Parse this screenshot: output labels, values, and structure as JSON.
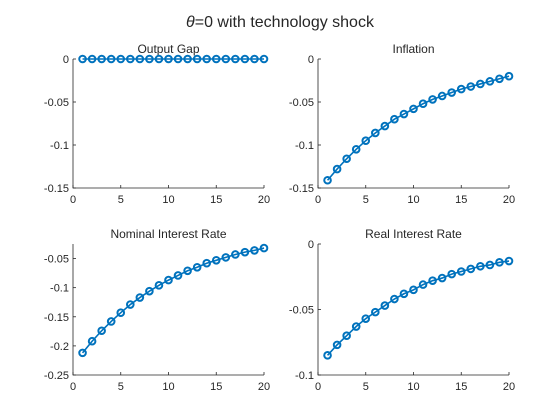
{
  "figure": {
    "title_symbol": "θ",
    "title_rest": "=0 with technology shock"
  },
  "colors": {
    "series": "#0072BD",
    "axis": "#262626"
  },
  "chart_data": [
    {
      "type": "line",
      "title": "Output Gap",
      "x": [
        1,
        2,
        3,
        4,
        5,
        6,
        7,
        8,
        9,
        10,
        11,
        12,
        13,
        14,
        15,
        16,
        17,
        18,
        19,
        20
      ],
      "y": [
        0,
        0,
        0,
        0,
        0,
        0,
        0,
        0,
        0,
        0,
        0,
        0,
        0,
        0,
        0,
        0,
        0,
        0,
        0,
        0
      ],
      "xlim": [
        0,
        20
      ],
      "ylim": [
        -0.15,
        0
      ],
      "xticks": [
        0,
        5,
        10,
        15,
        20
      ],
      "yticks": [
        0,
        -0.05,
        -0.1,
        -0.15
      ],
      "yticklabels": [
        "0",
        "-0.05",
        "-0.1",
        "-0.15"
      ],
      "marker": "circle"
    },
    {
      "type": "line",
      "title": "Inflation",
      "x": [
        1,
        2,
        3,
        4,
        5,
        6,
        7,
        8,
        9,
        10,
        11,
        12,
        13,
        14,
        15,
        16,
        17,
        18,
        19,
        20
      ],
      "y": [
        -0.141,
        -0.128,
        -0.116,
        -0.105,
        -0.095,
        -0.086,
        -0.078,
        -0.07,
        -0.064,
        -0.058,
        -0.052,
        -0.047,
        -0.043,
        -0.039,
        -0.035,
        -0.032,
        -0.029,
        -0.026,
        -0.023,
        -0.02
      ],
      "xlim": [
        0,
        20
      ],
      "ylim": [
        -0.15,
        0
      ],
      "xticks": [
        0,
        5,
        10,
        15,
        20
      ],
      "yticks": [
        0,
        -0.05,
        -0.1,
        -0.15
      ],
      "yticklabels": [
        "0",
        "-0.05",
        "-0.1",
        "-0.15"
      ],
      "marker": "circle"
    },
    {
      "type": "line",
      "title": "Nominal Interest Rate",
      "x": [
        1,
        2,
        3,
        4,
        5,
        6,
        7,
        8,
        9,
        10,
        11,
        12,
        13,
        14,
        15,
        16,
        17,
        18,
        19,
        20
      ],
      "y": [
        -0.212,
        -0.192,
        -0.174,
        -0.158,
        -0.143,
        -0.129,
        -0.117,
        -0.106,
        -0.096,
        -0.087,
        -0.079,
        -0.071,
        -0.065,
        -0.058,
        -0.053,
        -0.048,
        -0.043,
        -0.039,
        -0.036,
        -0.032
      ],
      "xlim": [
        0,
        20
      ],
      "ylim": [
        -0.25,
        -0.025
      ],
      "xticks": [
        0,
        5,
        10,
        15,
        20
      ],
      "yticks": [
        -0.05,
        -0.1,
        -0.15,
        -0.2,
        -0.25
      ],
      "yticklabels": [
        "-0.05",
        "-0.1",
        "-0.15",
        "-0.2",
        "-0.25"
      ],
      "marker": "circle"
    },
    {
      "type": "line",
      "title": "Real Interest Rate",
      "x": [
        1,
        2,
        3,
        4,
        5,
        6,
        7,
        8,
        9,
        10,
        11,
        12,
        13,
        14,
        15,
        16,
        17,
        18,
        19,
        20
      ],
      "y": [
        -0.085,
        -0.077,
        -0.07,
        -0.063,
        -0.057,
        -0.052,
        -0.047,
        -0.042,
        -0.038,
        -0.035,
        -0.031,
        -0.028,
        -0.026,
        -0.023,
        -0.021,
        -0.019,
        -0.017,
        -0.016,
        -0.014,
        -0.013
      ],
      "xlim": [
        0,
        20
      ],
      "ylim": [
        -0.1,
        0
      ],
      "xticks": [
        0,
        5,
        10,
        15,
        20
      ],
      "yticks": [
        0,
        -0.05,
        -0.1
      ],
      "yticklabels": [
        "0",
        "-0.05",
        "-0.1"
      ],
      "marker": "circle"
    }
  ]
}
